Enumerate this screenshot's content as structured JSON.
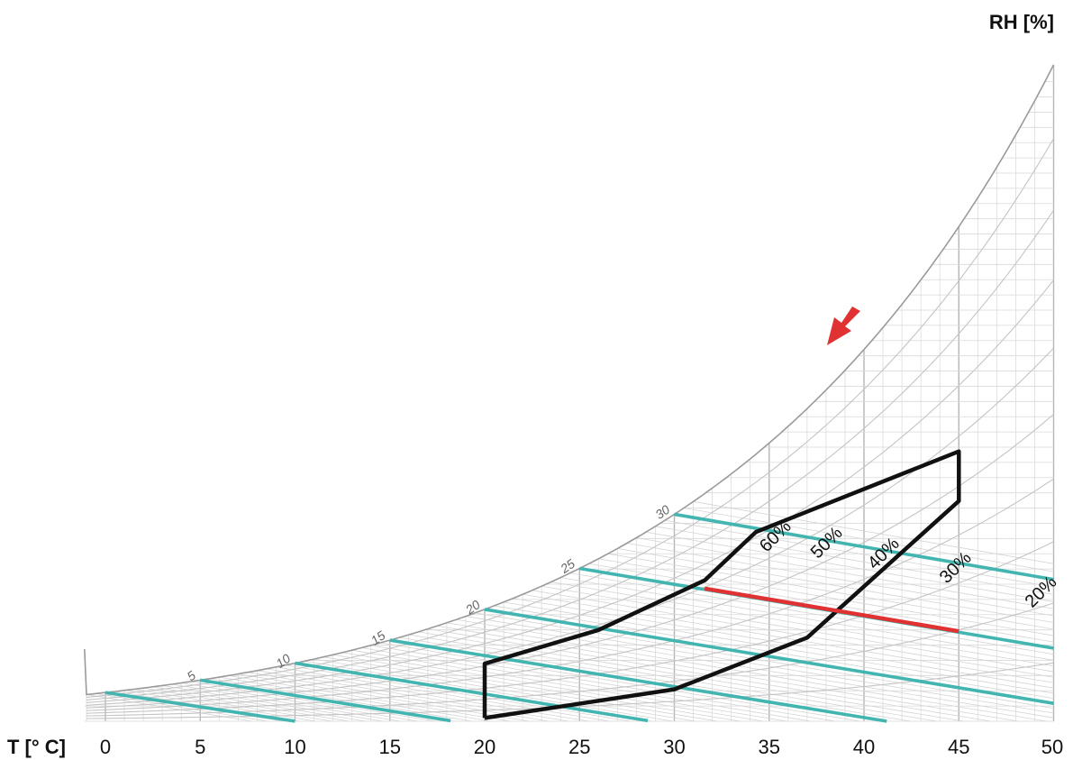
{
  "chart_data": {
    "type": "psychrometric",
    "xlabel": "T [° C]",
    "ylabel": "RH [%]",
    "xlim": [
      0,
      50
    ],
    "x_ticks": [
      "0",
      "5",
      "10",
      "15",
      "20",
      "25",
      "30",
      "35",
      "40",
      "45",
      "50"
    ],
    "grid": true,
    "wet_bulb_lines": {
      "color": "#43b5b0",
      "labels": [
        "5",
        "10",
        "15",
        "20",
        "25",
        "30"
      ],
      "lines": [
        {
          "wb": 0,
          "t_end": 10,
          "label": ""
        },
        {
          "wb": 5,
          "t_end": 18.2,
          "label": "5"
        },
        {
          "wb": 10,
          "t_end": 28.6,
          "label": "10"
        },
        {
          "wb": 15,
          "t_end": 41.2,
          "label": "15"
        },
        {
          "wb": 20,
          "t_end": 50,
          "label": "20"
        },
        {
          "wb": 25,
          "t_end": 50,
          "label": "25"
        },
        {
          "wb": 30,
          "t_end": 50,
          "label": "30"
        }
      ]
    },
    "rh_labels": [
      {
        "text": "60%",
        "rh": 60
      },
      {
        "text": "50%",
        "rh": 50
      },
      {
        "text": "40%",
        "rh": 40
      },
      {
        "text": "30%",
        "rh": 30
      },
      {
        "text": "20%",
        "rh": 20
      }
    ],
    "region": {
      "color": "#111111",
      "vertices_T": [
        20,
        20,
        26,
        31.6,
        34.3,
        45,
        45,
        37,
        30,
        20
      ],
      "vertices_RH": [
        3,
        52,
        57,
        63,
        72,
        57,
        47,
        28,
        16,
        3
      ]
    },
    "process_line": {
      "color": "#e03232",
      "from_T": 31.6,
      "to_T": 45,
      "direction": "down"
    }
  }
}
